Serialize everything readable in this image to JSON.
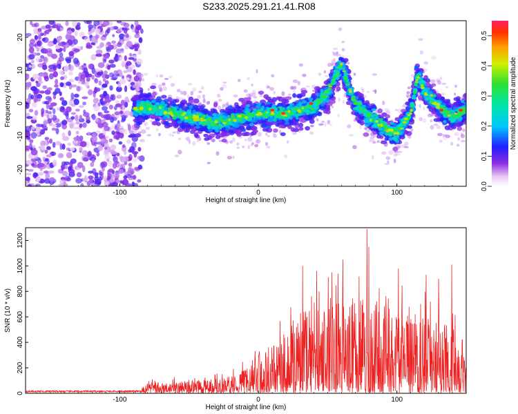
{
  "title": "S233.2025.291.21.41.R08",
  "chart_data": [
    {
      "type": "heatmap",
      "xlabel": "Height of straight line (km)",
      "ylabel": "Frequency (Hz)",
      "xlim": [
        -168,
        150
      ],
      "ylim": [
        -25,
        25
      ],
      "x_ticks": [
        -100,
        0,
        100
      ],
      "x_tick_labels": [
        "-100",
        "0",
        "100"
      ],
      "y_ticks": [
        -20,
        -10,
        0,
        10,
        20
      ],
      "y_tick_labels": [
        "-20",
        "-10",
        "0",
        "10",
        "20"
      ],
      "colorbar": {
        "label": "Normalized spectral amplitude",
        "range": [
          0,
          0.55
        ],
        "ticks": [
          0,
          0.1,
          0.2,
          0.3,
          0.4,
          0.5
        ],
        "tick_labels": [
          "0.0",
          "0.1",
          "0.2",
          "0.3",
          "0.4",
          "0.5"
        ]
      },
      "ridge": {
        "x": [
          -88,
          -80,
          -70,
          -60,
          -50,
          -40,
          -30,
          -20,
          -10,
          0,
          10,
          20,
          30,
          40,
          50,
          55,
          60,
          65,
          70,
          80,
          90,
          100,
          110,
          115,
          120,
          130,
          140,
          148
        ],
        "y": [
          -2,
          -1,
          -2,
          -3,
          -4,
          -5,
          -6,
          -5,
          -4,
          -3,
          -3,
          -3,
          -2,
          -1,
          3,
          8,
          12,
          5,
          0,
          -4,
          -7,
          -9,
          -3,
          8,
          4,
          -1,
          -4,
          -2
        ]
      },
      "noise_region_x": [
        -168,
        -88
      ],
      "grid": false
    },
    {
      "type": "line",
      "xlabel": "Height of straight line (km)",
      "ylabel": "SNR (10 * v/v)",
      "xlim": [
        -168,
        150
      ],
      "ylim": [
        0,
        1300
      ],
      "x_ticks": [
        -100,
        0,
        100
      ],
      "x_tick_labels": [
        "-100",
        "0",
        "100"
      ],
      "y_ticks": [
        0,
        200,
        400,
        600,
        800,
        1000,
        1200
      ],
      "y_tick_labels": [
        "0",
        "200",
        "400",
        "600",
        "800",
        "1000",
        "1200"
      ],
      "series_color": "#ee2020",
      "envelope": {
        "x": [
          -168,
          -85,
          -80,
          -60,
          -40,
          -20,
          -10,
          0,
          10,
          20,
          30,
          40,
          50,
          60,
          70,
          80,
          90,
          100,
          110,
          120,
          130,
          140,
          150
        ],
        "y": [
          15,
          15,
          100,
          120,
          140,
          170,
          250,
          420,
          500,
          650,
          780,
          900,
          950,
          980,
          1000,
          1050,
          950,
          900,
          850,
          800,
          760,
          700,
          320
        ]
      },
      "peaks": [
        {
          "x": 78.5,
          "y": 1290
        },
        {
          "x": 79.8,
          "y": 1150
        },
        {
          "x": 61,
          "y": 1050
        },
        {
          "x": 32,
          "y": 1000
        },
        {
          "x": 139.5,
          "y": 1010
        },
        {
          "x": 53,
          "y": 950
        },
        {
          "x": 101,
          "y": 980
        },
        {
          "x": 121,
          "y": 930
        },
        {
          "x": 130,
          "y": 900
        },
        {
          "x": 42,
          "y": 960
        }
      ],
      "grid": false
    }
  ]
}
